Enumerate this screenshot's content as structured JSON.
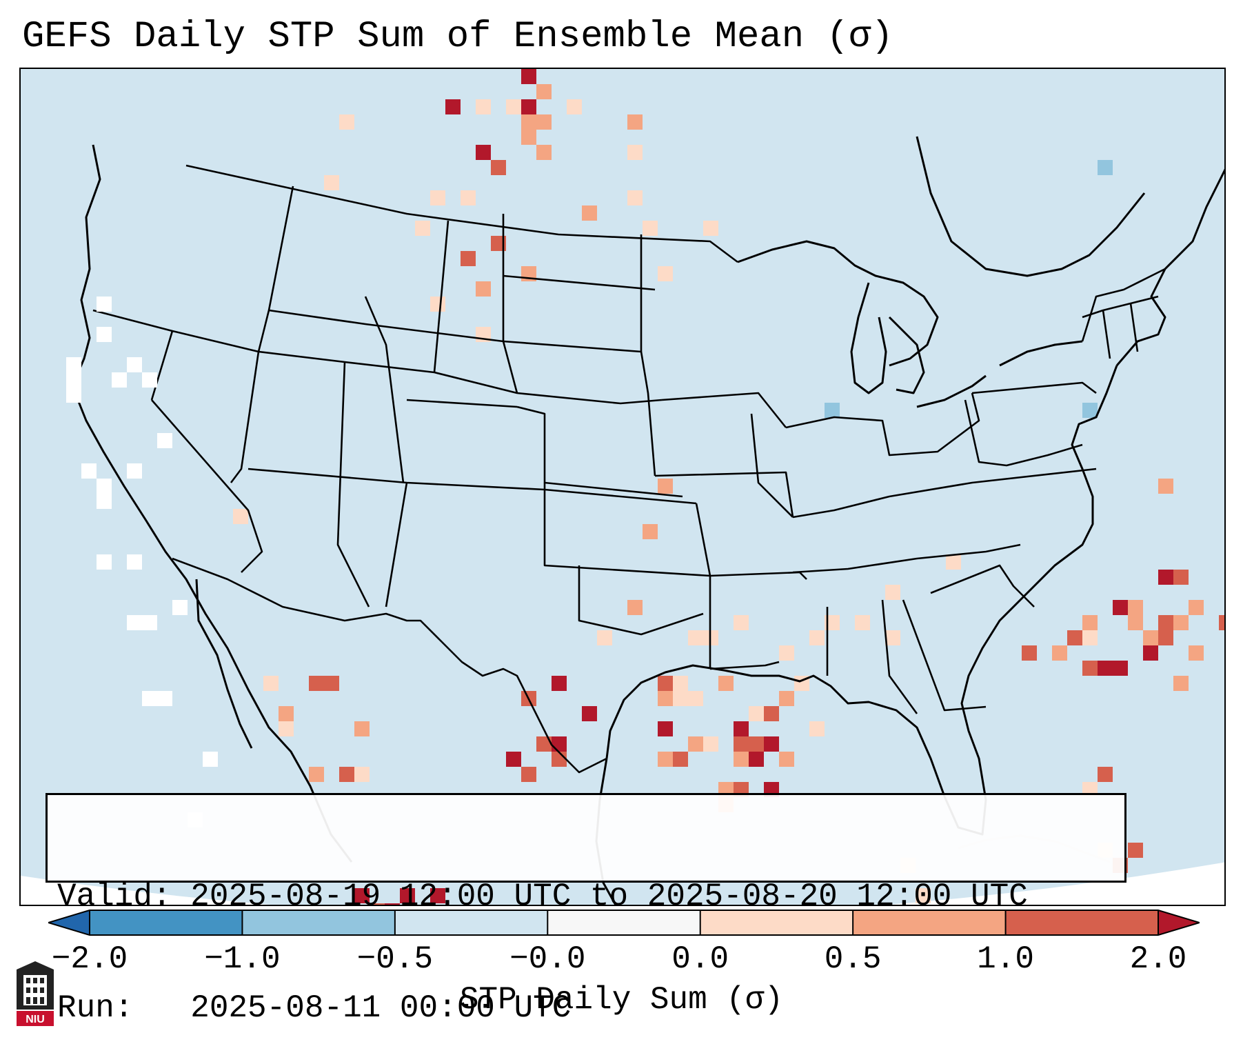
{
  "title": "GEFS Daily STP Sum of Ensemble Mean (σ)",
  "info": {
    "valid_line": "Valid: 2025-08-19 12:00 UTC to 2025-08-20 12:00 UTC",
    "run_line": "Run:   2025-08-11 00:00 UTC"
  },
  "colorbar": {
    "label": "STP Daily Sum (σ)",
    "ticks": [
      "−2.0",
      "−1.0",
      "−0.5",
      "−0.0",
      "0.0",
      "0.5",
      "1.0",
      "2.0"
    ],
    "bins": [
      {
        "range": "-2.0 to -1.0",
        "color": "#4393c3"
      },
      {
        "range": "-1.0 to -0.5",
        "color": "#92c5de"
      },
      {
        "range": "-0.5 to -0.0",
        "color": "#d1e5f0"
      },
      {
        "range": "-0.0 to 0.0",
        "color": "#f7f7f7"
      },
      {
        "range": "0.0 to 0.5",
        "color": "#fddbc7"
      },
      {
        "range": "0.5 to 1.0",
        "color": "#f4a582"
      },
      {
        "range": "1.0 to 2.0",
        "color": "#d6604d"
      }
    ],
    "under_color": "#2166ac",
    "over_color": "#b2182b"
  },
  "logo": {
    "text": "NIU",
    "color": "#c8102e"
  },
  "map": {
    "region": "CONUS, northern Mexico and southern Canada",
    "background_color": "#d1e5f0",
    "outline_color": "#000000"
  }
}
